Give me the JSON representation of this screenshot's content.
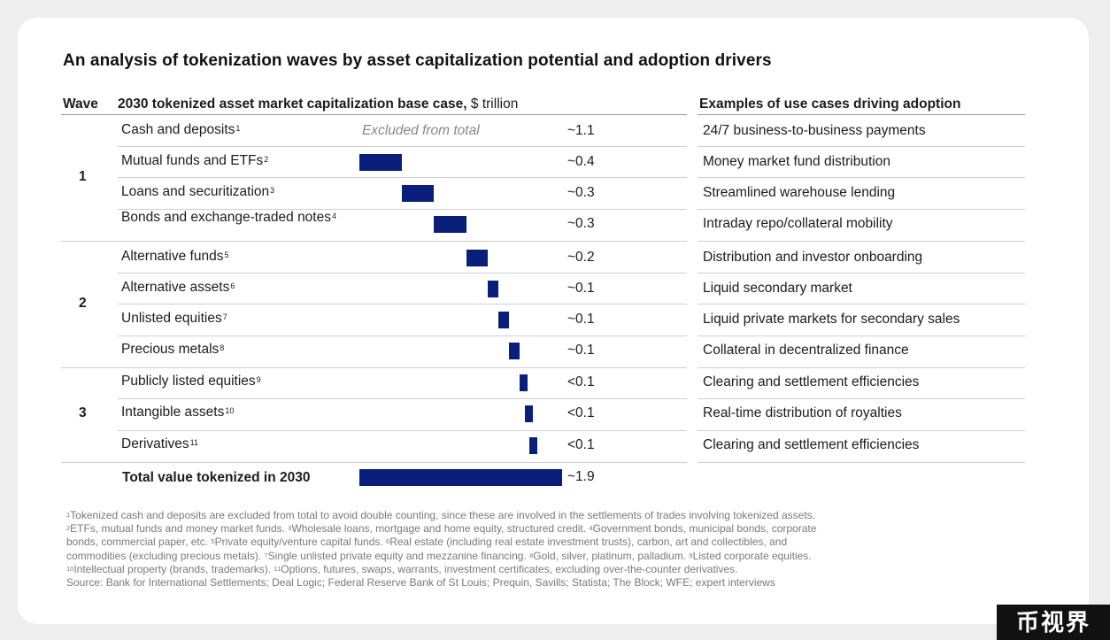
{
  "title": "An analysis of tokenization waves by asset capitalization potential and adoption drivers",
  "headers": {
    "wave": "Wave",
    "market_cap": "2030 tokenized asset market capitalization base case,",
    "unit": "$ trillion",
    "use_cases": "Examples of use cases driving adoption"
  },
  "excluded_label": "Excluded from total",
  "waves": [
    "1",
    "2",
    "3"
  ],
  "chart_data": {
    "type": "bar",
    "title": "2030 tokenized asset market capitalization base case, $ trillion",
    "subtype": "waterfall",
    "categories": [
      {
        "label": "Cash and deposits",
        "sup": "1",
        "wave": "1",
        "value_label": "~1.1",
        "value": 1.1,
        "excluded": true,
        "use_case": "24/7 business-to-business payments"
      },
      {
        "label": "Mutual funds and ETFs",
        "sup": "2",
        "wave": "1",
        "value_label": "~0.4",
        "value": 0.4,
        "excluded": false,
        "use_case": "Money market fund distribution"
      },
      {
        "label": "Loans and securitization",
        "sup": "3",
        "wave": "1",
        "value_label": "~0.3",
        "value": 0.3,
        "excluded": false,
        "use_case": "Streamlined warehouse lending"
      },
      {
        "label": "Bonds and exchange-traded notes",
        "sup": "4",
        "wave": "1",
        "value_label": "~0.3",
        "value": 0.3,
        "excluded": false,
        "use_case": "Intraday repo/collateral mobility"
      },
      {
        "label": "Alternative funds",
        "sup": "5",
        "wave": "2",
        "value_label": "~0.2",
        "value": 0.2,
        "excluded": false,
        "use_case": "Distribution and investor onboarding"
      },
      {
        "label": "Alternative assets",
        "sup": "6",
        "wave": "2",
        "value_label": "~0.1",
        "value": 0.1,
        "excluded": false,
        "use_case": "Liquid secondary market"
      },
      {
        "label": "Unlisted equities",
        "sup": "7",
        "wave": "2",
        "value_label": "~0.1",
        "value": 0.1,
        "excluded": false,
        "use_case": "Liquid private markets for secondary sales"
      },
      {
        "label": "Precious metals",
        "sup": "8",
        "wave": "2",
        "value_label": "~0.1",
        "value": 0.1,
        "excluded": false,
        "use_case": "Collateral in decentralized finance"
      },
      {
        "label": "Publicly listed equities",
        "sup": "9",
        "wave": "3",
        "value_label": "<0.1",
        "value": 0.05,
        "excluded": false,
        "use_case": "Clearing and settlement efficiencies"
      },
      {
        "label": "Intangible assets",
        "sup": "10",
        "wave": "3",
        "value_label": "<0.1",
        "value": 0.04,
        "excluded": false,
        "use_case": "Real-time distribution of royalties"
      },
      {
        "label": "Derivatives",
        "sup": "11",
        "wave": "3",
        "value_label": "<0.1",
        "value": 0.03,
        "excluded": false,
        "use_case": "Clearing and settlement efficiencies"
      }
    ],
    "total": {
      "label": "Total value tokenized in 2030",
      "value_label": "~1.9",
      "value": 1.9
    },
    "bar_color": "#0a1f7a"
  },
  "footnotes": [
    {
      "n": "1",
      "text": "Tokenized cash and deposits are excluded from total to avoid double counting, since these are involved in the settlements of trades involving tokenized assets."
    },
    {
      "n": "2",
      "text": "ETFs, mutual funds and money market funds. "
    },
    {
      "n": "3",
      "text": "Wholesale loans, mortgage and home equity, structured credit. "
    },
    {
      "n": "4",
      "text": "Government bonds, municipal bonds, corporate"
    },
    {
      "n": "",
      "text": "bonds, commercial paper, etc. "
    },
    {
      "n": "5",
      "text": "Private equity/venture capital funds. "
    },
    {
      "n": "6",
      "text": "Real estate (including real estate investment trusts), carbon, art and collectibles, and"
    },
    {
      "n": "",
      "text": "commodities (excluding precious metals). "
    },
    {
      "n": "7",
      "text": "Single unlisted private equity and mezzanine financing. "
    },
    {
      "n": "8",
      "text": "Gold, silver, platinum, palladium. "
    },
    {
      "n": "9",
      "text": "Listed corporate equities."
    },
    {
      "n": "10",
      "text": "Intellectual property (brands, trademarks). "
    },
    {
      "n": "11",
      "text": "Options, futures, swaps, warrants, investment certificates, excluding over-the-counter derivatives."
    }
  ],
  "source": "Source: Bank for International Settlements; Deal Logic; Federal Reserve Bank of St Louis; Prequin, Savills; Statista; The Block; WFE; expert interviews",
  "watermark": "币视界"
}
